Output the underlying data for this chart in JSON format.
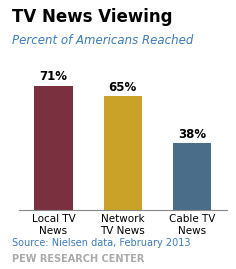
{
  "title": "TV News Viewing",
  "subtitle": "Percent of Americans Reached",
  "categories": [
    "Local TV\nNews",
    "Network\nTV News",
    "Cable TV\nNews"
  ],
  "values": [
    71,
    65,
    38
  ],
  "bar_colors": [
    "#7B3040",
    "#C9A227",
    "#4A6E8A"
  ],
  "bar_labels": [
    "71%",
    "65%",
    "38%"
  ],
  "source": "Source: Nielsen data, February 2013",
  "footer": "PEW RESEARCH CENTER",
  "ylim": [
    0,
    80
  ],
  "background_color": "#ffffff",
  "title_fontsize": 12,
  "subtitle_fontsize": 8.5,
  "label_fontsize": 8.5,
  "tick_fontsize": 7.5,
  "source_fontsize": 7,
  "footer_fontsize": 7,
  "source_color": "#3B7BBE",
  "footer_color": "#aaaaaa",
  "subtitle_color": "#3B7BBE"
}
